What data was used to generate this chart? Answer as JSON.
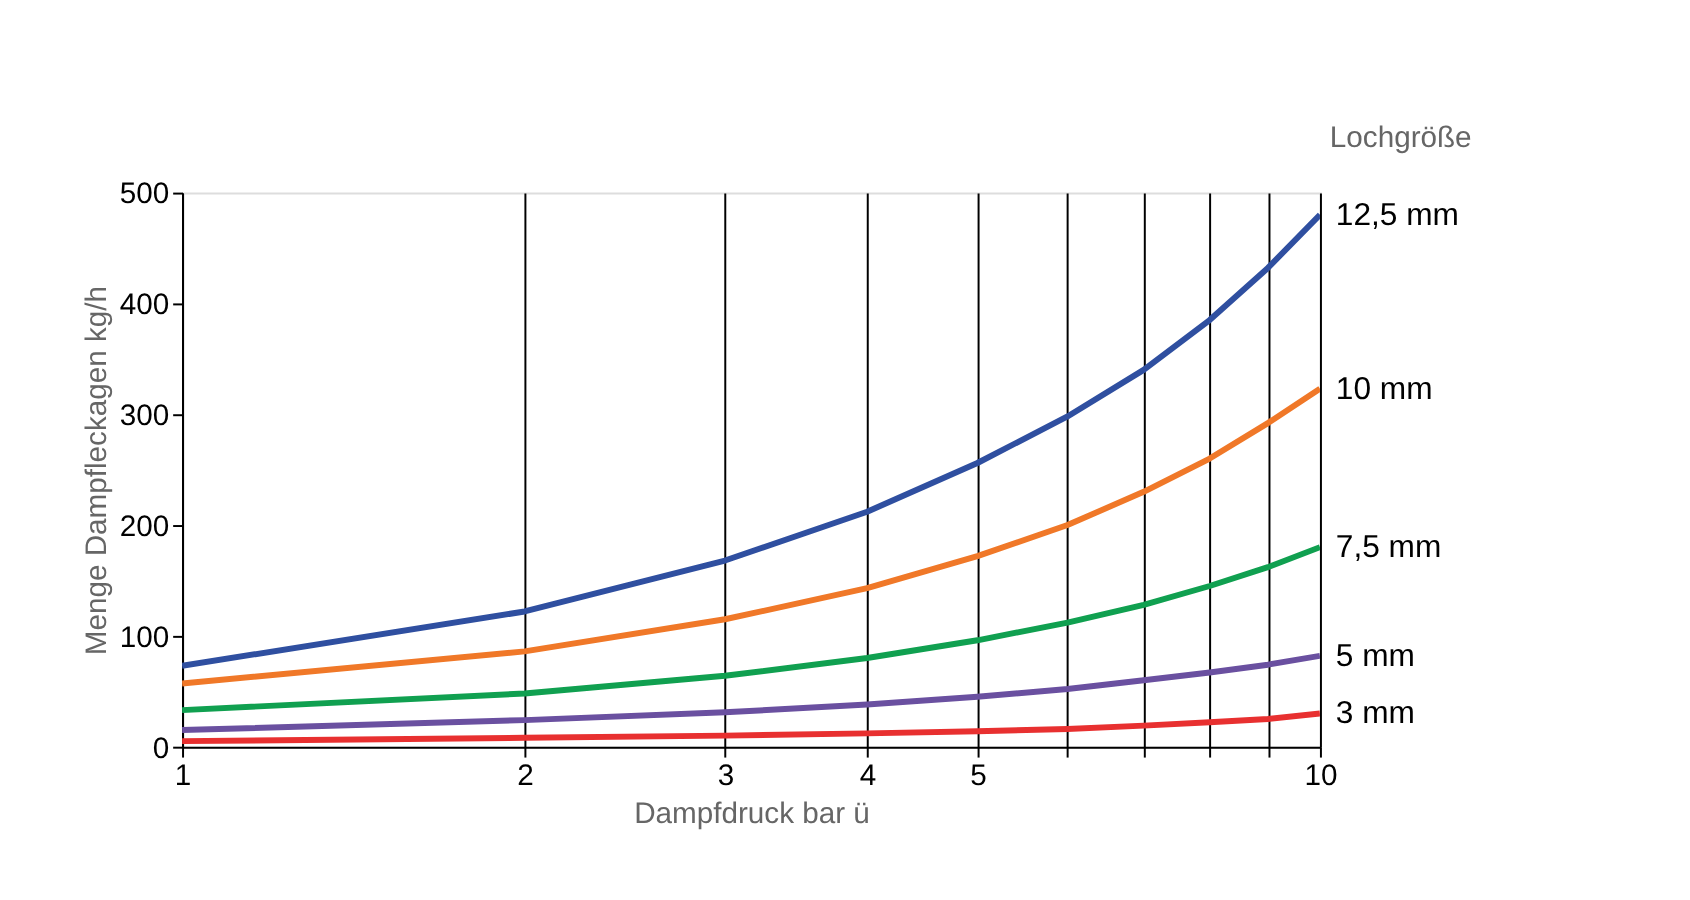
{
  "chart_data": {
    "type": "line",
    "xlabel": "Dampfdruck bar ü",
    "ylabel": "Menge Dampfleckagen kg/h",
    "legend_title": "Lochgröße",
    "log": "x",
    "grid": "x",
    "line_style": "solid",
    "marker": "none",
    "xlim": [
      1,
      10
    ],
    "xticks": [
      1,
      2,
      3,
      4,
      5,
      {
        "value": 6,
        "label": null
      },
      {
        "value": 7,
        "label": null
      },
      {
        "value": 8,
        "label": null
      },
      {
        "value": 9,
        "label": null
      },
      10
    ],
    "ylim": [
      0,
      500
    ],
    "yticks": [
      0,
      100,
      200,
      300,
      400,
      500
    ],
    "x": [
      1,
      2,
      3,
      4,
      5,
      6,
      7,
      8,
      9,
      10
    ],
    "series": [
      {
        "name": "12,5 mm",
        "color": "#2f4fa0",
        "values": [
          73,
          122,
          168,
          212,
          256,
          298,
          340,
          385,
          432,
          480
        ]
      },
      {
        "name": "10 mm",
        "color": "#f07828",
        "values": [
          57,
          86,
          115,
          143,
          172,
          200,
          230,
          260,
          292,
          323
        ]
      },
      {
        "name": "7,5 mm",
        "color": "#10a050",
        "values": [
          33,
          48,
          64,
          80,
          96,
          112,
          128,
          145,
          162,
          180
        ]
      },
      {
        "name": "5 mm",
        "color": "#6a50a0",
        "values": [
          15,
          24,
          31,
          38,
          45,
          52,
          60,
          67,
          74,
          82
        ]
      },
      {
        "name": "3 mm",
        "color": "#e83030",
        "values": [
          5,
          8,
          10,
          12,
          14,
          16,
          19,
          22,
          25,
          30
        ]
      }
    ]
  }
}
